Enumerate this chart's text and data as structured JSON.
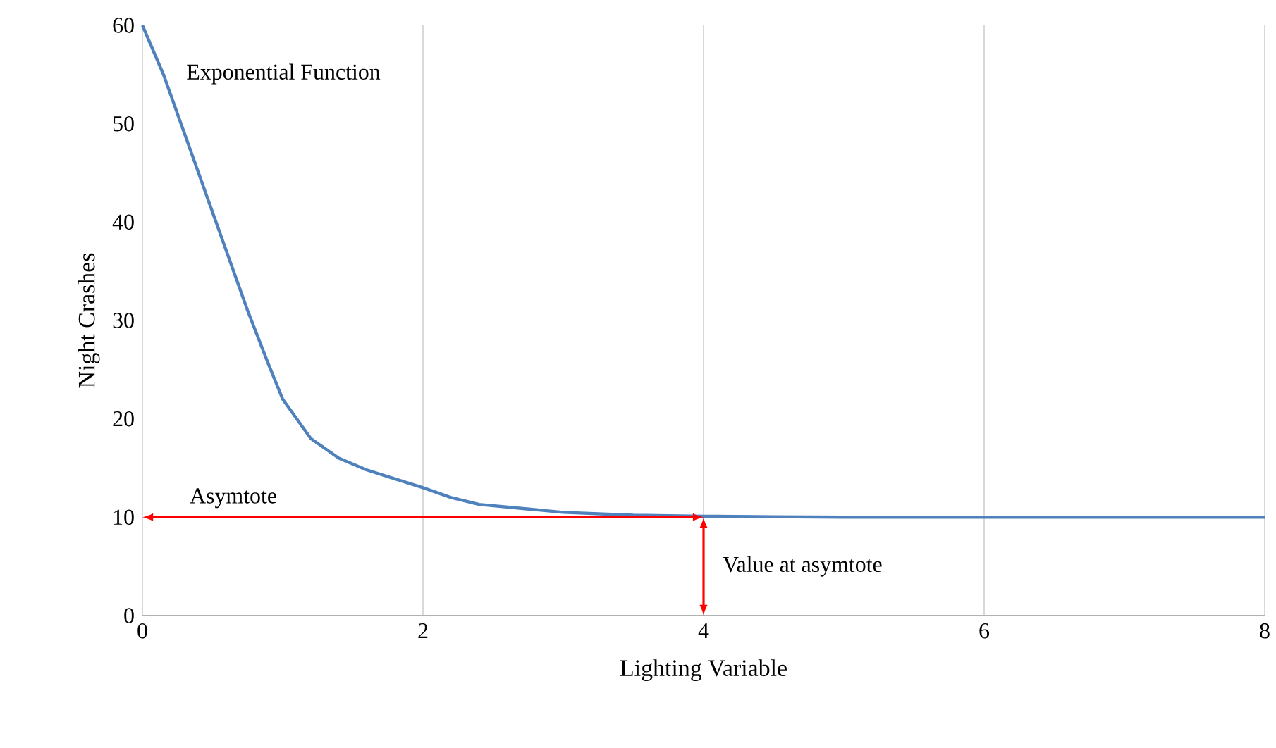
{
  "chart_data": {
    "type": "line",
    "xlabel": "Lighting Variable",
    "ylabel": "Night Crashes",
    "series": [
      {
        "name": "Exponential Function",
        "color": "#4f81bd",
        "x": [
          0,
          0.15,
          0.3,
          0.45,
          0.6,
          0.75,
          0.9,
          1,
          1.2,
          1.4,
          1.6,
          1.8,
          2,
          2.2,
          2.4,
          2.7,
          3,
          3.5,
          4,
          4.5,
          5,
          6,
          7,
          8
        ],
        "values": [
          60,
          55,
          49,
          43,
          37,
          31,
          25.5,
          22,
          18,
          16,
          14.8,
          13.9,
          13,
          12,
          11.3,
          10.9,
          10.5,
          10.2,
          10.1,
          10.05,
          10,
          10,
          10,
          10
        ]
      }
    ],
    "xlim": [
      0,
      8
    ],
    "ylim": [
      0,
      60
    ],
    "xticks": [
      0,
      2,
      4,
      6,
      8
    ],
    "yticks": [
      0,
      10,
      20,
      30,
      40,
      50,
      60
    ],
    "grid": "x",
    "marker": "none",
    "line_style": "solid",
    "annotations": [
      "Asymtote",
      {
        "text": "Value at asymtote",
        "x": 4,
        "y": 10
      }
    ]
  }
}
